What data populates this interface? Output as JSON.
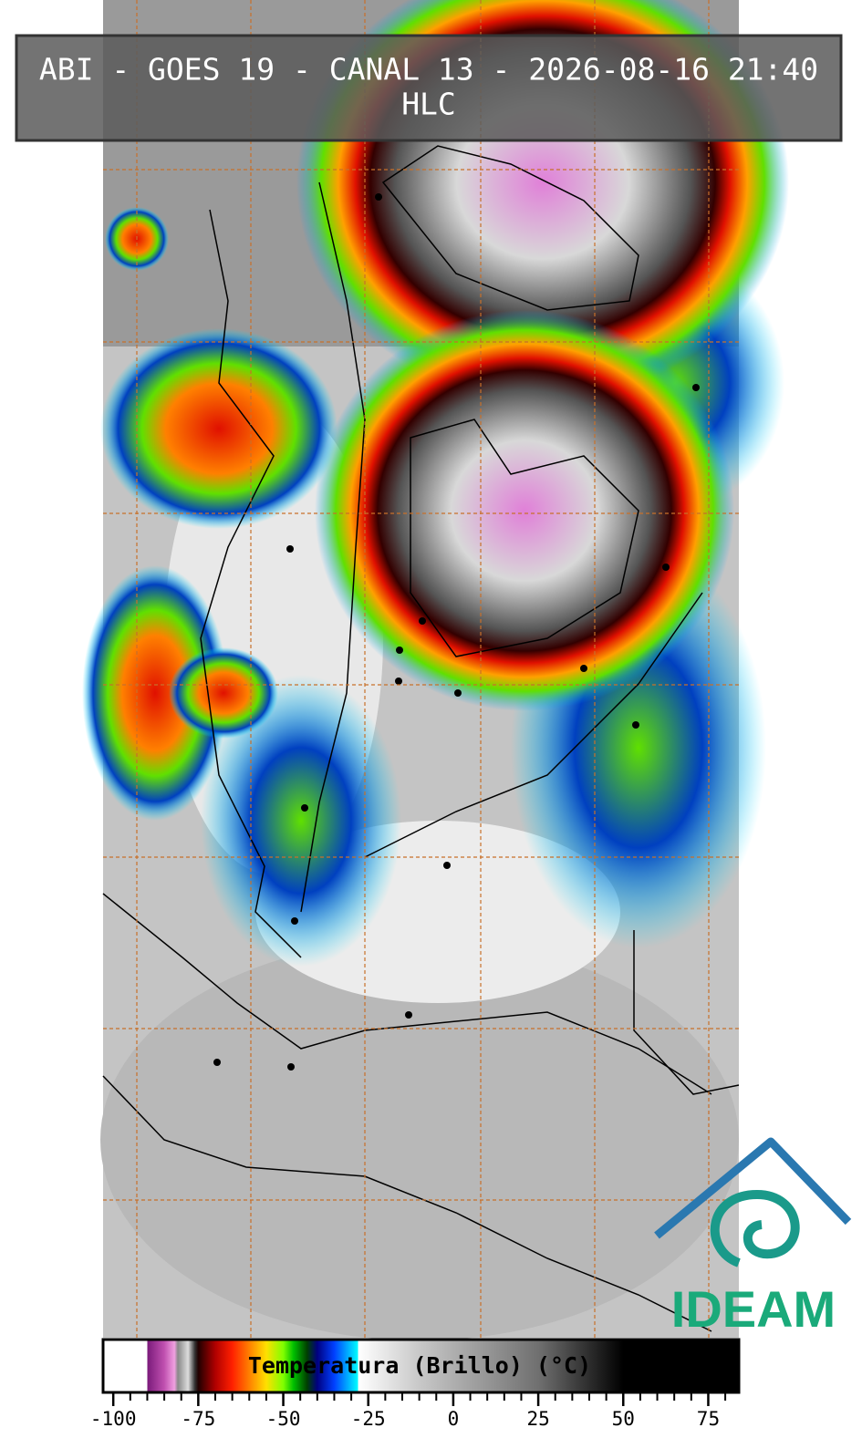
{
  "header": {
    "title": "ABI - GOES 19 - CANAL 13 - 2026-08-16 21:40",
    "subtitle": "HLC"
  },
  "colorbar": {
    "label": "Temperatura (Brillo) (°C)",
    "range": [
      -103,
      84
    ],
    "ticks": [
      -100,
      -75,
      -50,
      -25,
      0,
      25,
      50,
      75
    ],
    "minor_ticks": [
      -95,
      -90,
      -85,
      -80,
      -70,
      -65,
      -60,
      -55,
      -45,
      -40,
      -35,
      -30,
      -20,
      -15,
      -10,
      -5,
      5,
      10,
      15,
      20,
      30,
      35,
      40,
      45,
      55,
      60,
      65,
      70,
      80
    ],
    "stops": [
      {
        "value": -103,
        "color": "#ffffff"
      },
      {
        "value": -90,
        "color": "#ffffff"
      },
      {
        "value": -90,
        "color": "#7a1a7a"
      },
      {
        "value": -85,
        "color": "#c050b0"
      },
      {
        "value": -82,
        "color": "#f0a0e0"
      },
      {
        "value": -81,
        "color": "#888888"
      },
      {
        "value": -78,
        "color": "#dddddd"
      },
      {
        "value": -76,
        "color": "#333333"
      },
      {
        "value": -75,
        "color": "#200000"
      },
      {
        "value": -70,
        "color": "#b00000"
      },
      {
        "value": -65,
        "color": "#ff2000"
      },
      {
        "value": -60,
        "color": "#ff8000"
      },
      {
        "value": -55,
        "color": "#ffe000"
      },
      {
        "value": -50,
        "color": "#80ff00"
      },
      {
        "value": -47,
        "color": "#00c000"
      },
      {
        "value": -43,
        "color": "#004000"
      },
      {
        "value": -40,
        "color": "#000080"
      },
      {
        "value": -35,
        "color": "#0040ff"
      },
      {
        "value": -28,
        "color": "#00ffff"
      },
      {
        "value": -28,
        "color": "#ffffff"
      },
      {
        "value": -10,
        "color": "#c8c8c8"
      },
      {
        "value": 25,
        "color": "#707070"
      },
      {
        "value": 50,
        "color": "#000000"
      },
      {
        "value": 84,
        "color": "#000000"
      }
    ]
  },
  "logo": {
    "text": "IDEAM"
  }
}
